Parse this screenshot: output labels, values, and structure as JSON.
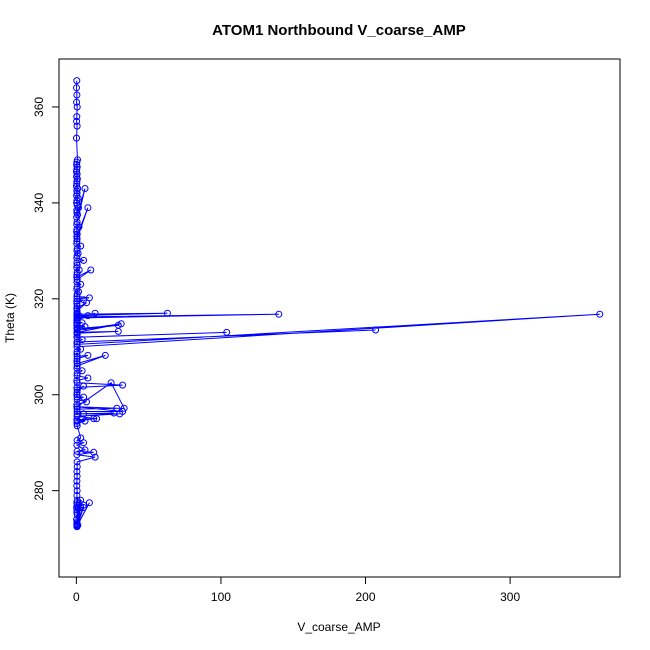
{
  "chart_data": {
    "type": "scatter",
    "title": "ATOM1 Northbound V_coarse_AMP",
    "xlabel": "V_coarse_AMP",
    "ylabel": "Theta (K)",
    "xlim": [
      -12,
      376
    ],
    "ylim": [
      262,
      370
    ],
    "xticks": [
      0,
      100,
      200,
      300
    ],
    "yticks": [
      280,
      300,
      320,
      340,
      360
    ],
    "grid": false,
    "legend": "none",
    "marker": "open-circle",
    "connected": true,
    "color": "#0000ff",
    "series": [
      {
        "x": [
          0.3,
          0.1,
          0.4,
          0.2,
          0.6,
          0.3,
          0.2,
          0.5,
          0.1,
          0.8,
          0.4,
          0.2,
          0.6,
          0.3,
          0.1,
          0.5,
          0.2,
          0.7,
          0.4,
          0.3,
          0.1,
          0.9,
          0.3,
          0.5,
          0.2,
          1.2,
          0.4,
          0.2,
          0.6,
          1.5,
          0.3,
          0.4,
          0.8,
          0.2,
          6,
          0.5,
          0.3,
          1.8,
          0.4,
          0.2,
          0.6,
          0.3,
          8,
          0.5,
          0.4,
          0.3,
          3,
          0.6,
          0.4,
          1.2,
          0.5,
          0.3,
          5,
          0.4,
          0.6,
          0.3,
          2,
          0.5,
          0.4,
          0.3,
          10,
          0.6,
          0.4,
          3,
          0.5,
          0.3,
          1.5,
          0.6,
          0.4,
          9,
          0.5,
          0.3,
          5,
          0.4,
          0.6,
          0.3,
          7,
          0.5,
          0.4,
          1.8,
          8,
          0.5,
          13,
          0.4,
          0.3,
          0.5,
          0.6,
          63,
          0.4,
          0.5,
          140,
          0.6,
          0.3,
          4,
          0.5,
          0.4,
          6,
          0.5,
          0.4,
          29,
          0.6,
          31,
          0.4,
          29,
          0.5,
          0.6,
          0.4,
          104,
          0.5,
          4,
          0.6,
          207,
          0.4,
          0.5,
          362,
          0.4,
          3,
          0.5,
          0.4,
          0.6,
          8,
          0.5,
          0.4,
          0.6,
          20,
          0.5,
          0.4,
          4,
          0.6,
          0.5,
          8,
          0.4,
          0.5,
          32,
          0.4,
          0.6,
          5,
          0.5,
          0.4,
          0.6,
          5,
          0.5,
          7,
          0.4,
          0.6,
          24,
          33,
          0.5,
          28,
          0.4,
          32,
          0.5,
          0.6,
          26,
          5,
          30,
          0.5,
          0.6,
          14,
          0.4,
          12,
          0.5,
          6,
          0.4,
          0.6,
          3,
          0.5,
          5,
          0.4,
          6,
          0.5,
          12,
          0.4,
          13,
          0.5,
          0.6,
          0.4,
          0.5,
          0.4,
          0.3,
          0.5,
          0.4,
          0.6,
          0.3,
          0.5,
          0.2,
          0.4,
          0.3,
          0.6,
          0.2,
          1.2,
          0.4,
          0.3,
          2,
          0.5,
          0.4,
          5,
          0.6,
          0.5,
          3,
          0.4,
          0.6,
          5,
          0.5,
          3,
          0.4,
          9,
          0.5,
          1
        ],
        "y": [
          365.5,
          364,
          362.5,
          361,
          360,
          358,
          357,
          356,
          353.5,
          349,
          348.5,
          348,
          347.5,
          347,
          346.5,
          346,
          345.5,
          345,
          344.5,
          344,
          343.5,
          343,
          342.5,
          342,
          341.5,
          341,
          340.5,
          340,
          339.5,
          339,
          338.5,
          338,
          337.5,
          337,
          343,
          336,
          335.5,
          335,
          334.5,
          334,
          333.5,
          333,
          339,
          332.5,
          332,
          331.5,
          331,
          330.5,
          330,
          329.5,
          329,
          328.5,
          328,
          327.5,
          327,
          326.5,
          326,
          325.5,
          325,
          324.5,
          326,
          324,
          323.5,
          323,
          322.5,
          322,
          321.5,
          321,
          320.5,
          320.2,
          320,
          319.5,
          319.8,
          319,
          318.5,
          318,
          319.2,
          317.5,
          317,
          316.5,
          316.5,
          316,
          317,
          315.5,
          315,
          317,
          316.8,
          317,
          316.5,
          316,
          316.8,
          316.2,
          315.5,
          315,
          314.8,
          314.5,
          314.2,
          314,
          313.8,
          314.5,
          313.5,
          314.8,
          313,
          313.2,
          312.8,
          312.5,
          312,
          313,
          312,
          311.5,
          311,
          313.5,
          311,
          310.5,
          316.8,
          310,
          309.5,
          309,
          308.5,
          308,
          308.2,
          307.5,
          307,
          306.5,
          308.2,
          306,
          305.5,
          305,
          304.5,
          304,
          303.5,
          303,
          302.5,
          302,
          301.5,
          301,
          301.8,
          300.5,
          300,
          299.5,
          299.5,
          299,
          298.5,
          298,
          297.5,
          302.5,
          297.2,
          297,
          297.2,
          297.5,
          296.5,
          296.5,
          296,
          296.2,
          296,
          296,
          295.5,
          295.5,
          295,
          294.8,
          295,
          294.5,
          294.5,
          294,
          293.5,
          291,
          290.5,
          290,
          289.5,
          288.5,
          288.2,
          288,
          287.5,
          287,
          286,
          285,
          284,
          283,
          282,
          281,
          280,
          279,
          278,
          277.5,
          277,
          276.5,
          276,
          275.5,
          275,
          274,
          276.5,
          273.5,
          273.2,
          277.5,
          273,
          272.8,
          276.5,
          272.8,
          272.6,
          278,
          272.5,
          272.7,
          277,
          272.5,
          276.5,
          272.7,
          277.5,
          272.6,
          272.8
        ]
      }
    ]
  }
}
